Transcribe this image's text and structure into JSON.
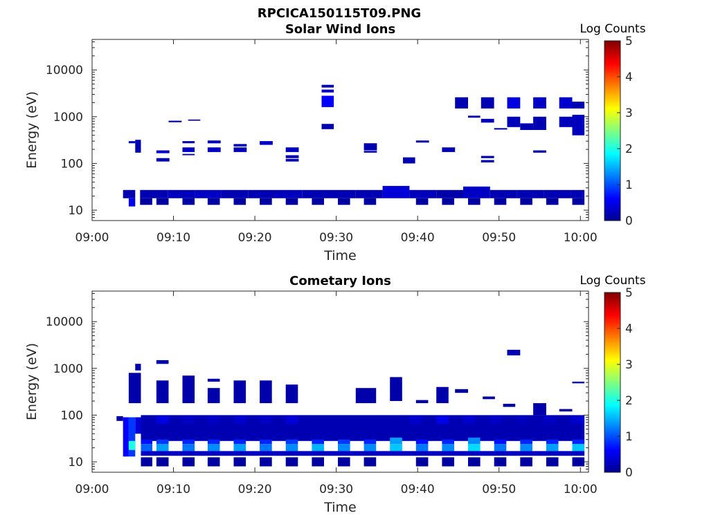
{
  "figure": {
    "title": "RPCICA150115T09.PNG"
  },
  "colors": {
    "map": [
      "#00008f",
      "#0000ff",
      "#0080ff",
      "#00ffff",
      "#80ff80",
      "#ffff00",
      "#ff8000",
      "#ff0000",
      "#800000"
    ]
  },
  "chart_data": [
    {
      "type": "heatmap",
      "title": "Solar Wind Ions",
      "xlabel": "Time",
      "ylabel": "Energy (eV)",
      "yscale": "log",
      "ylim": [
        6,
        45000
      ],
      "xlim_minutes": [
        0,
        61
      ],
      "x_ticks": [
        "09:00",
        "09:10",
        "09:20",
        "09:30",
        "09:40",
        "09:50",
        "10:00"
      ],
      "y_ticks": [
        "10",
        "100",
        "1000",
        "10000"
      ],
      "colorbar": {
        "label": "Log Counts",
        "min": 0,
        "max": 5,
        "ticks": [
          "0",
          "1",
          "2",
          "3",
          "4",
          "5"
        ]
      },
      "cells": [
        [
          3.8,
          5.3,
          18,
          27,
          0.2
        ],
        [
          5.9,
          9.3,
          18,
          27,
          0.2
        ],
        [
          9.3,
          12.6,
          18,
          27,
          0.25
        ],
        [
          12.6,
          15.9,
          18,
          27,
          0.3
        ],
        [
          15.9,
          19.2,
          18,
          27,
          0.2
        ],
        [
          19.2,
          22.5,
          18,
          27,
          0.2
        ],
        [
          22.5,
          25.8,
          18,
          27,
          0.25
        ],
        [
          25.8,
          29.1,
          18,
          27,
          0.2
        ],
        [
          29.1,
          32.4,
          18,
          27,
          0.2
        ],
        [
          32.4,
          35.7,
          18,
          27,
          0.2
        ],
        [
          35.7,
          39.0,
          18,
          33,
          0.4
        ],
        [
          39.0,
          42.3,
          18,
          27,
          0.25
        ],
        [
          42.3,
          45.6,
          18,
          27,
          0.15
        ],
        [
          45.6,
          48.9,
          18,
          32,
          0.3
        ],
        [
          48.9,
          52.2,
          18,
          27,
          0.2
        ],
        [
          52.2,
          55.5,
          18,
          27,
          0.2
        ],
        [
          55.5,
          58.8,
          18,
          27,
          0.2
        ],
        [
          58.8,
          60.5,
          18,
          27,
          0.2
        ],
        [
          4.5,
          5.3,
          12,
          18,
          0.5
        ],
        [
          5.9,
          7.4,
          13,
          18,
          0.1
        ],
        [
          7.9,
          9.4,
          13,
          18,
          0.1
        ],
        [
          11.1,
          12.6,
          13,
          18,
          0.1
        ],
        [
          14.2,
          15.7,
          13,
          18,
          0.1
        ],
        [
          17.4,
          18.9,
          13,
          18,
          0.1
        ],
        [
          20.6,
          22.1,
          13,
          18,
          0.1
        ],
        [
          23.8,
          25.3,
          13,
          18,
          0.1
        ],
        [
          27.0,
          28.5,
          13,
          18,
          0.1
        ],
        [
          30.2,
          31.7,
          13,
          18,
          0.1
        ],
        [
          33.4,
          34.9,
          13,
          18,
          0.1
        ],
        [
          39.8,
          41.3,
          13,
          18,
          0.1
        ],
        [
          43.0,
          44.5,
          13,
          18,
          0.1
        ],
        [
          46.2,
          47.7,
          13,
          18,
          0.1
        ],
        [
          49.4,
          50.9,
          13,
          18,
          0.1
        ],
        [
          52.6,
          54.1,
          13,
          18,
          0.1
        ],
        [
          55.8,
          57.3,
          13,
          18,
          0.1
        ],
        [
          59.0,
          60.5,
          13,
          18,
          0.1
        ],
        [
          4.5,
          5.3,
          270,
          300,
          0.3
        ],
        [
          5.3,
          6.0,
          170,
          320,
          0.2
        ],
        [
          7.9,
          9.5,
          165,
          190,
          0.3
        ],
        [
          7.9,
          9.5,
          110,
          130,
          0.2
        ],
        [
          9.4,
          11.0,
          760,
          820,
          0.2
        ],
        [
          11.1,
          12.6,
          175,
          220,
          0.3
        ],
        [
          11.1,
          12.6,
          270,
          300,
          0.2
        ],
        [
          11.1,
          12.6,
          150,
          160,
          0.2
        ],
        [
          11.8,
          13.3,
          820,
          870,
          0.25
        ],
        [
          14.2,
          15.8,
          175,
          220,
          0.3
        ],
        [
          14.2,
          15.8,
          270,
          310,
          0.3
        ],
        [
          17.4,
          19.0,
          175,
          220,
          0.25
        ],
        [
          17.4,
          19.0,
          230,
          260,
          0.2
        ],
        [
          20.6,
          22.2,
          250,
          300,
          0.3
        ],
        [
          23.8,
          25.4,
          175,
          220,
          0.3
        ],
        [
          23.8,
          25.4,
          130,
          150,
          0.2
        ],
        [
          23.8,
          25.4,
          110,
          125,
          0.2
        ],
        [
          28.2,
          29.7,
          540,
          700,
          0.2
        ],
        [
          28.2,
          29.7,
          1600,
          2800,
          0.6
        ],
        [
          28.2,
          29.7,
          3300,
          3800,
          0.3
        ],
        [
          28.2,
          29.7,
          4200,
          4800,
          0.2
        ],
        [
          33.4,
          35.0,
          190,
          270,
          0.2
        ],
        [
          33.4,
          35.0,
          170,
          185,
          0.2
        ],
        [
          38.2,
          39.7,
          100,
          135,
          0.2
        ],
        [
          39.8,
          41.4,
          280,
          310,
          0.2
        ],
        [
          43.0,
          44.6,
          175,
          220,
          0.2
        ],
        [
          44.6,
          46.2,
          1500,
          2600,
          0.2
        ],
        [
          46.2,
          47.7,
          950,
          1050,
          0.2
        ],
        [
          47.8,
          49.4,
          1500,
          2600,
          0.2
        ],
        [
          47.8,
          49.4,
          750,
          900,
          0.25
        ],
        [
          47.8,
          49.4,
          130,
          145,
          0.2
        ],
        [
          47.8,
          49.4,
          105,
          118,
          0.2
        ],
        [
          49.4,
          51.0,
          530,
          570,
          0.2
        ],
        [
          51.0,
          52.6,
          1500,
          2600,
          0.45
        ],
        [
          51.0,
          52.6,
          600,
          1000,
          0.25
        ],
        [
          52.6,
          54.2,
          520,
          720,
          0.2
        ],
        [
          54.2,
          55.8,
          1500,
          2600,
          0.3
        ],
        [
          54.2,
          55.8,
          520,
          1000,
          0.2
        ],
        [
          54.2,
          55.8,
          170,
          190,
          0.2
        ],
        [
          57.4,
          59.0,
          1500,
          2600,
          0.35
        ],
        [
          57.4,
          59.0,
          600,
          1000,
          0.25
        ],
        [
          59.0,
          60.5,
          1500,
          2100,
          0.2
        ],
        [
          59.0,
          60.5,
          400,
          1100,
          0.25
        ]
      ]
    },
    {
      "type": "heatmap",
      "title": "Cometary Ions",
      "xlabel": "Time",
      "ylabel": "Energy (eV)",
      "yscale": "log",
      "ylim": [
        6,
        45000
      ],
      "xlim_minutes": [
        0,
        61
      ],
      "x_ticks": [
        "09:00",
        "09:10",
        "09:20",
        "09:30",
        "09:40",
        "09:50",
        "10:00"
      ],
      "y_ticks": [
        "10",
        "100",
        "1000",
        "10000"
      ],
      "colorbar": {
        "label": "Log Counts",
        "min": 0,
        "max": 5,
        "ticks": [
          "0",
          "1",
          "2",
          "3",
          "4",
          "5"
        ]
      },
      "cells": [
        [
          3.0,
          3.8,
          75,
          95,
          0.1
        ],
        [
          3.8,
          4.5,
          13,
          90,
          0.6
        ],
        [
          4.5,
          5.3,
          13,
          90,
          0.9
        ],
        [
          4.5,
          5.3,
          18,
          28,
          2.0
        ],
        [
          5.3,
          6.0,
          40,
          90,
          0.4
        ],
        [
          6.0,
          60.5,
          28,
          100,
          0.2
        ],
        [
          7.9,
          9.4,
          65,
          95,
          0.45
        ],
        [
          11.1,
          12.6,
          65,
          95,
          0.3
        ],
        [
          14.2,
          15.7,
          65,
          95,
          0.3
        ],
        [
          17.4,
          18.9,
          65,
          95,
          0.35
        ],
        [
          20.6,
          22.1,
          65,
          95,
          0.3
        ],
        [
          23.8,
          25.3,
          65,
          95,
          0.4
        ],
        [
          39.0,
          40.5,
          65,
          95,
          0.35
        ],
        [
          42.3,
          43.8,
          65,
          95,
          0.5
        ],
        [
          45.6,
          47.1,
          65,
          95,
          0.35
        ],
        [
          48.9,
          50.4,
          65,
          95,
          0.3
        ],
        [
          52.2,
          53.7,
          65,
          95,
          0.25
        ],
        [
          55.5,
          57.0,
          65,
          95,
          0.3
        ],
        [
          58.8,
          60.5,
          65,
          95,
          0.35
        ],
        [
          6.0,
          7.4,
          24,
          30,
          0.7
        ],
        [
          7.9,
          9.4,
          24,
          30,
          0.9
        ],
        [
          11.1,
          12.6,
          24,
          30,
          0.8
        ],
        [
          14.2,
          15.7,
          24,
          30,
          0.8
        ],
        [
          17.4,
          18.9,
          24,
          30,
          0.8
        ],
        [
          20.6,
          22.1,
          24,
          30,
          0.8
        ],
        [
          23.8,
          25.3,
          24,
          30,
          0.9
        ],
        [
          27.0,
          28.5,
          24,
          30,
          0.8
        ],
        [
          30.2,
          31.7,
          24,
          30,
          0.9
        ],
        [
          33.4,
          34.9,
          24,
          30,
          0.8
        ],
        [
          36.6,
          38.1,
          24,
          33,
          1.4
        ],
        [
          39.8,
          41.3,
          24,
          30,
          0.7
        ],
        [
          43.0,
          44.5,
          24,
          30,
          0.8
        ],
        [
          46.2,
          47.7,
          24,
          33,
          1.3
        ],
        [
          49.4,
          50.9,
          24,
          30,
          0.7
        ],
        [
          52.6,
          54.1,
          24,
          30,
          0.8
        ],
        [
          55.8,
          57.3,
          24,
          30,
          0.8
        ],
        [
          59.0,
          60.5,
          24,
          30,
          0.8
        ],
        [
          6.0,
          7.4,
          17,
          24,
          1.1
        ],
        [
          7.9,
          9.4,
          17,
          24,
          1.4
        ],
        [
          11.1,
          12.6,
          17,
          24,
          1.2
        ],
        [
          14.2,
          15.7,
          17,
          24,
          1.3
        ],
        [
          17.4,
          18.9,
          17,
          24,
          1.4
        ],
        [
          20.6,
          22.1,
          17,
          24,
          1.2
        ],
        [
          23.8,
          25.3,
          17,
          24,
          1.3
        ],
        [
          27.0,
          28.5,
          17,
          24,
          1.5
        ],
        [
          30.2,
          31.7,
          17,
          24,
          1.3
        ],
        [
          33.4,
          34.9,
          17,
          24,
          1.3
        ],
        [
          36.6,
          38.1,
          17,
          24,
          1.6
        ],
        [
          39.8,
          41.3,
          17,
          24,
          1.2
        ],
        [
          43.0,
          44.5,
          17,
          24,
          1.3
        ],
        [
          46.2,
          47.7,
          17,
          24,
          1.7
        ],
        [
          49.4,
          50.9,
          17,
          24,
          1.2
        ],
        [
          52.6,
          54.1,
          17,
          24,
          1.3
        ],
        [
          55.8,
          57.3,
          17,
          24,
          1.4
        ],
        [
          59.0,
          60.5,
          17,
          24,
          1.6
        ],
        [
          6.0,
          60.5,
          13.5,
          17,
          0.3
        ],
        [
          6.0,
          7.4,
          8,
          12.5,
          0.1
        ],
        [
          7.9,
          9.4,
          8,
          12.5,
          0.1
        ],
        [
          11.1,
          12.6,
          8,
          12.5,
          0.1
        ],
        [
          14.2,
          15.7,
          8,
          12.5,
          0.1
        ],
        [
          17.4,
          18.9,
          8,
          12.5,
          0.1
        ],
        [
          20.6,
          22.1,
          8,
          12.5,
          0.1
        ],
        [
          23.8,
          25.3,
          8,
          12.5,
          0.1
        ],
        [
          27.0,
          28.5,
          8,
          12.5,
          0.1
        ],
        [
          30.2,
          31.7,
          8,
          12.5,
          0.1
        ],
        [
          33.4,
          34.9,
          8,
          12.5,
          0.1
        ],
        [
          39.8,
          41.3,
          8,
          12.5,
          0.1
        ],
        [
          43.0,
          44.5,
          8,
          12.5,
          0.1
        ],
        [
          46.2,
          47.7,
          8,
          12.5,
          0.1
        ],
        [
          49.4,
          50.9,
          8,
          12.5,
          0.1
        ],
        [
          52.6,
          54.1,
          8,
          12.5,
          0.1
        ],
        [
          55.8,
          57.3,
          8,
          12.5,
          0.1
        ],
        [
          59.0,
          60.5,
          8,
          12.5,
          0.1
        ],
        [
          4.5,
          6.0,
          180,
          800,
          0.15
        ],
        [
          5.3,
          6.0,
          900,
          1250,
          0.15
        ],
        [
          7.9,
          9.4,
          180,
          550,
          0.15
        ],
        [
          7.9,
          9.4,
          1250,
          1500,
          0.15
        ],
        [
          11.1,
          12.6,
          180,
          700,
          0.15
        ],
        [
          14.2,
          15.7,
          180,
          380,
          0.15
        ],
        [
          14.2,
          15.7,
          520,
          600,
          0.15
        ],
        [
          17.4,
          18.9,
          180,
          550,
          0.15
        ],
        [
          20.6,
          22.1,
          180,
          550,
          0.15
        ],
        [
          23.8,
          25.3,
          180,
          450,
          0.15
        ],
        [
          32.4,
          34.9,
          180,
          380,
          0.15
        ],
        [
          36.6,
          38.1,
          200,
          650,
          0.15
        ],
        [
          39.8,
          41.3,
          180,
          210,
          0.1
        ],
        [
          42.3,
          43.8,
          180,
          400,
          0.15
        ],
        [
          44.6,
          46.2,
          300,
          360,
          0.1
        ],
        [
          48.0,
          49.5,
          220,
          250,
          0.1
        ],
        [
          50.5,
          52.0,
          150,
          175,
          0.1
        ],
        [
          51.0,
          52.6,
          1900,
          2500,
          0.2
        ],
        [
          54.2,
          55.8,
          100,
          180,
          0.15
        ],
        [
          57.4,
          59.0,
          120,
          135,
          0.1
        ],
        [
          59.0,
          60.5,
          480,
          520,
          0.1
        ]
      ]
    }
  ]
}
